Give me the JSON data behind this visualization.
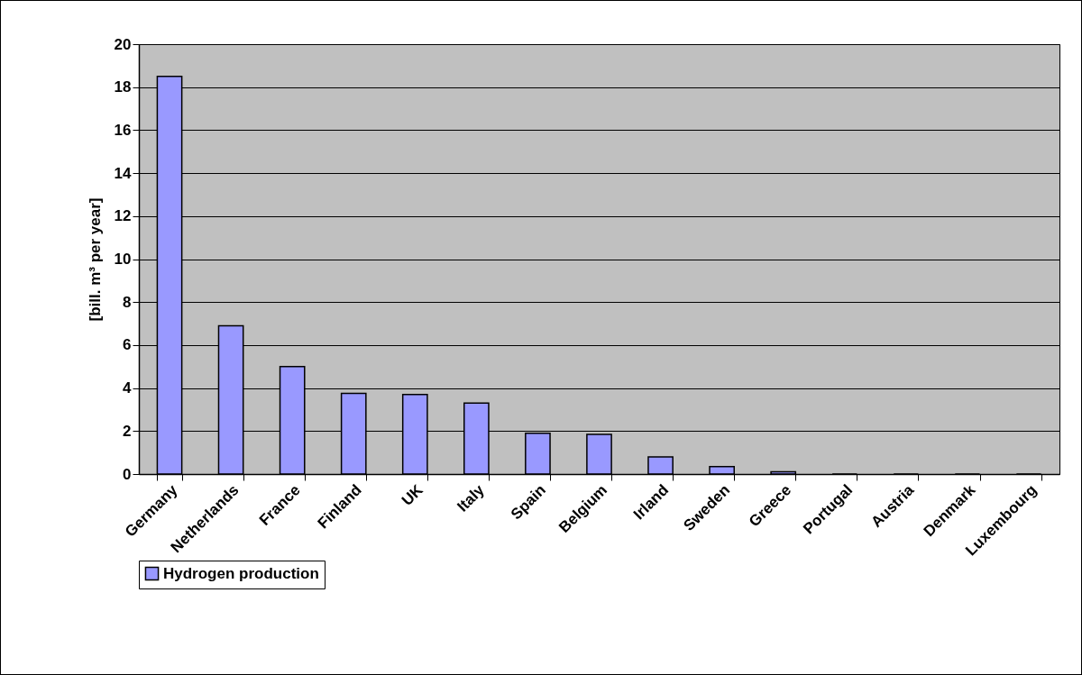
{
  "chart_data": {
    "type": "bar",
    "ylabel": "[bill. m³ per year]",
    "categories": [
      "Germany",
      "Netherlands",
      "France",
      "Finland",
      "UK",
      "Italy",
      "Spain",
      "Belgium",
      "Irland",
      "Sweden",
      "Greece",
      "Portugal",
      "Austria",
      "Denmark",
      "Luxembourg"
    ],
    "series": [
      {
        "name": "Hydrogen production",
        "color": "#9999ff",
        "values": [
          18.5,
          6.9,
          5.0,
          3.75,
          3.7,
          3.3,
          1.9,
          1.85,
          0.8,
          0.35,
          0.1,
          0,
          0,
          0,
          0
        ]
      }
    ],
    "ylim": [
      0,
      20
    ],
    "yticks": [
      0,
      2,
      4,
      6,
      8,
      10,
      12,
      14,
      16,
      18,
      20
    ],
    "grid": "y",
    "legend": "bottom"
  }
}
